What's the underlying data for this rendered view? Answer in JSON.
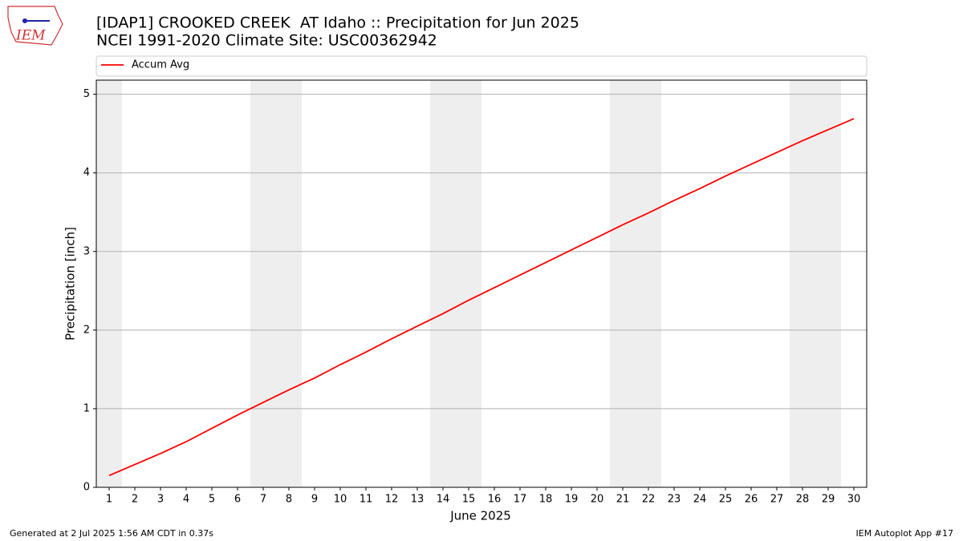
{
  "logo_text": "IEM",
  "footer_left": "Generated at 2 Jul 2025 1:56 AM CDT in 0.37s",
  "footer_right": "IEM Autoplot App #17",
  "chart_data": {
    "type": "line",
    "title": "[IDAP1] CROOKED CREEK  AT Idaho :: Precipitation for Jun 2025",
    "subtitle": "NCEI 1991-2020 Climate Site: USC00362942",
    "x_label": "June 2025",
    "y_label": "Precipitation [inch]",
    "x": [
      1,
      2,
      3,
      4,
      5,
      6,
      7,
      8,
      9,
      10,
      11,
      12,
      13,
      14,
      15,
      16,
      17,
      18,
      19,
      20,
      21,
      22,
      23,
      24,
      25,
      26,
      27,
      28,
      29,
      30
    ],
    "series": [
      {
        "name": "Accum Avg",
        "color": "#ff0000",
        "values": [
          0.15,
          0.29,
          0.43,
          0.58,
          0.75,
          0.92,
          1.08,
          1.24,
          1.39,
          1.56,
          1.72,
          1.89,
          2.05,
          2.21,
          2.38,
          2.54,
          2.7,
          2.86,
          3.02,
          3.18,
          3.34,
          3.49,
          3.65,
          3.8,
          3.96,
          4.11,
          4.26,
          4.41,
          4.55,
          4.69
        ]
      }
    ],
    "shaded_days": [
      1,
      7,
      8,
      14,
      15,
      21,
      22,
      28,
      29
    ],
    "shade_color": "#eeeeee",
    "xlim": [
      0.5,
      30.5
    ],
    "ylim": [
      0,
      5.18
    ],
    "xticks": [
      1,
      2,
      3,
      4,
      5,
      6,
      7,
      8,
      9,
      10,
      11,
      12,
      13,
      14,
      15,
      16,
      17,
      18,
      19,
      20,
      21,
      22,
      23,
      24,
      25,
      26,
      27,
      28,
      29,
      30
    ],
    "yticks": [
      0,
      1,
      2,
      3,
      4,
      5
    ],
    "grid": "y",
    "legend": "top"
  }
}
